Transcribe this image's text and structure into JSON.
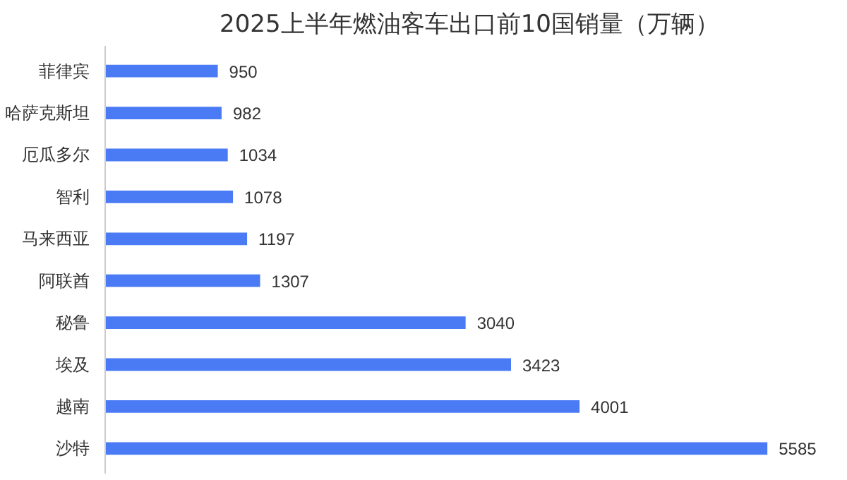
{
  "chart_data": {
    "type": "bar",
    "orientation": "horizontal",
    "title": "2025上半年燃油客车出口前10国销量（万辆）",
    "categories": [
      "菲律宾",
      "哈萨克斯坦",
      "厄瓜多尔",
      "智利",
      "马来西亚",
      "阿联酋",
      "秘鲁",
      "埃及",
      "越南",
      "沙特"
    ],
    "values": [
      950,
      982,
      1034,
      1078,
      1197,
      1307,
      3040,
      3423,
      4001,
      5585
    ],
    "color": "#4a7bf5",
    "data_labels": true,
    "grid": false
  }
}
